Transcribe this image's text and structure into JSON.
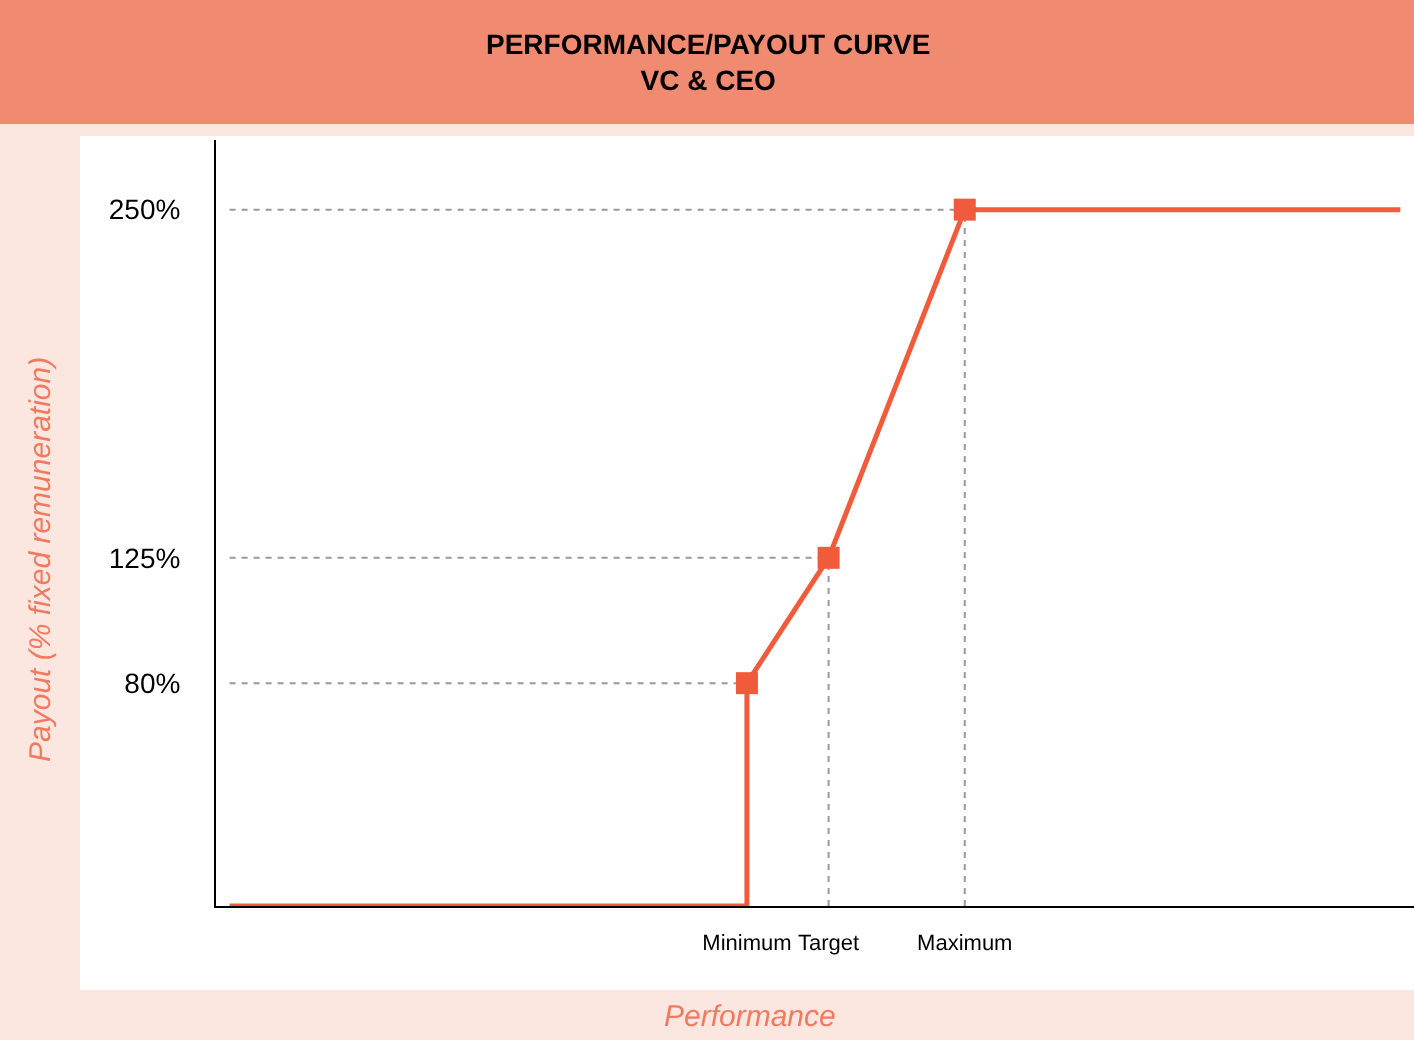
{
  "chart_data": {
    "type": "line",
    "title": "PERFORMANCE/PAYOUT CURVE",
    "subtitle": "VC & CEO",
    "xlabel": "Performance",
    "ylabel": "Payout (% fixed remuneration)",
    "categories": [
      null,
      null,
      null,
      null,
      null,
      null,
      null,
      null,
      null,
      null,
      null,
      null,
      null,
      null,
      null,
      null,
      null,
      null,
      null,
      "Minimum",
      null,
      null,
      "Target",
      null,
      null,
      null,
      null,
      "Maximum",
      null,
      null,
      null,
      null,
      null,
      null,
      null,
      null,
      null,
      null,
      null,
      null,
      null,
      null,
      null,
      null
    ],
    "ylim": [
      0,
      275
    ],
    "yticks": [
      {
        "value": 80,
        "label": "80%"
      },
      {
        "value": 125,
        "label": "125%"
      },
      {
        "value": 250,
        "label": "250%"
      }
    ],
    "series": [
      {
        "color": "#999999",
        "line_style": "dotted",
        "values": [
          80,
          80,
          80,
          80,
          80,
          80,
          80,
          80,
          80,
          80,
          80,
          80,
          80,
          80,
          80,
          80,
          80,
          80,
          80,
          80,
          null,
          null,
          null,
          null,
          null,
          null,
          null,
          null,
          null,
          null,
          null,
          null,
          null,
          null,
          null,
          null,
          null,
          null,
          null,
          null,
          null,
          null,
          null,
          null
        ]
      },
      {
        "color": "#999999",
        "line_style": "dotted",
        "values": [
          125,
          125,
          125,
          125,
          125,
          125,
          125,
          125,
          125,
          125,
          125,
          125,
          125,
          125,
          125,
          125,
          125,
          125,
          125,
          125,
          125,
          125,
          125,
          null,
          null,
          null,
          null,
          null,
          null,
          null,
          null,
          null,
          null,
          null,
          null,
          null,
          null,
          null,
          null,
          null,
          null,
          null,
          null,
          null
        ]
      },
      {
        "color": "#999999",
        "line_style": "dotted",
        "values": [
          250,
          250,
          250,
          250,
          250,
          250,
          250,
          250,
          250,
          250,
          250,
          250,
          250,
          250,
          250,
          250,
          250,
          250,
          250,
          250,
          250,
          250,
          250,
          250,
          250,
          250,
          250,
          250,
          null,
          null,
          null,
          null,
          null,
          null,
          null,
          null,
          null,
          null,
          null,
          null,
          null,
          null,
          null,
          null
        ]
      },
      {
        "type": "step",
        "color": "#ef5b3b",
        "values": [
          0,
          0,
          0,
          0,
          0,
          0,
          0,
          0,
          0,
          0,
          0,
          0,
          0,
          0,
          0,
          0,
          0,
          0,
          0,
          80,
          null,
          null,
          null,
          null,
          null,
          null,
          null,
          null,
          null,
          null,
          null,
          null,
          null,
          null,
          null,
          null,
          null,
          null,
          null,
          null,
          null,
          null,
          null,
          null
        ]
      },
      {
        "color": "#ef5b3b",
        "values": [
          null,
          null,
          null,
          null,
          null,
          null,
          null,
          null,
          null,
          null,
          null,
          null,
          null,
          null,
          null,
          null,
          null,
          null,
          null,
          80,
          95,
          110,
          125,
          150,
          175,
          200,
          225,
          250,
          250,
          250,
          250,
          250,
          250,
          250,
          250,
          250,
          250,
          250,
          250,
          250,
          250,
          250,
          250,
          250
        ]
      },
      {
        "type": "scatter",
        "color": "#ef5b3b",
        "marker": "square",
        "values": [
          null,
          null,
          null,
          null,
          null,
          null,
          null,
          null,
          null,
          null,
          null,
          null,
          null,
          null,
          null,
          null,
          null,
          null,
          null,
          80,
          null,
          null,
          125,
          null,
          null,
          null,
          null,
          250,
          null,
          null,
          null,
          null,
          null,
          null,
          null,
          null,
          null,
          null,
          null,
          null,
          null,
          null,
          null,
          null
        ],
        "errors": [
          null,
          null,
          null,
          null,
          null,
          null,
          null,
          null,
          null,
          null,
          null,
          null,
          null,
          null,
          null,
          null,
          null,
          null,
          null,
          [
            0,
            80
          ],
          null,
          null,
          [
            0,
            125
          ],
          null,
          null,
          null,
          null,
          [
            0,
            250
          ],
          null,
          null,
          null,
          null,
          null,
          null,
          null,
          null,
          null,
          null,
          null,
          null,
          null,
          null,
          null,
          null
        ]
      }
    ],
    "grid": false
  }
}
